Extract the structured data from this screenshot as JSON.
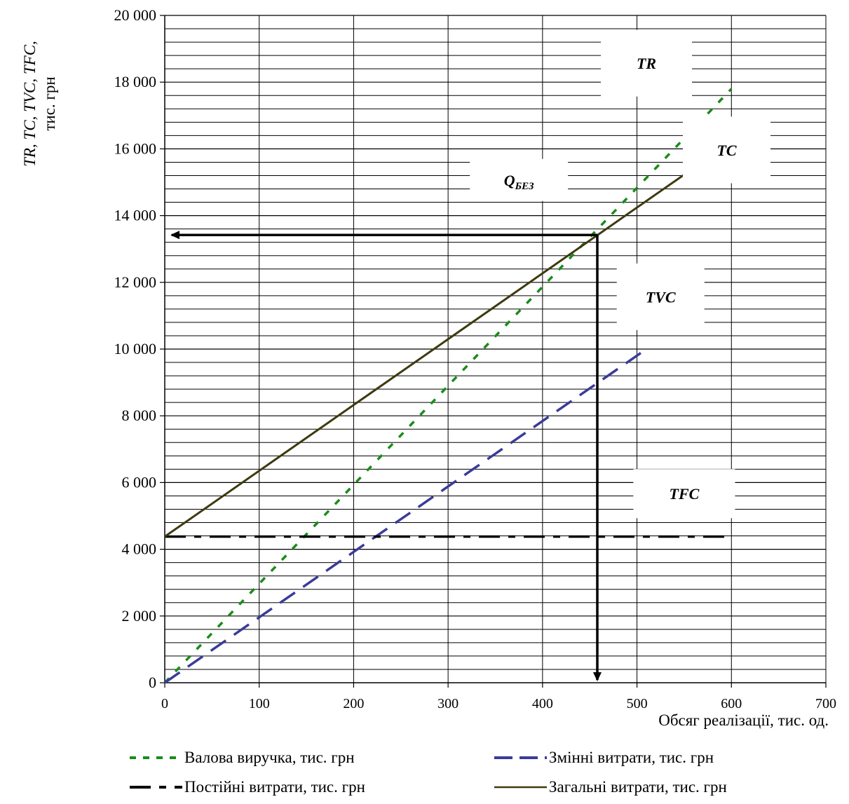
{
  "chart_data": {
    "type": "line",
    "xlabel": "Обсяг реалізації, тис. од.",
    "ylabel_line1": "TR, TC, TVC, TFC,",
    "ylabel_line2": "тис. грн",
    "xlim": [
      0,
      700
    ],
    "ylim": [
      0,
      20000
    ],
    "x_ticks": [
      0,
      100,
      200,
      300,
      400,
      500,
      600,
      700
    ],
    "x_tick_labels": [
      "0",
      "100",
      "200",
      "300",
      "400",
      "500",
      "600",
      "700"
    ],
    "y_ticks": [
      0,
      2000,
      4000,
      6000,
      8000,
      10000,
      12000,
      14000,
      16000,
      18000,
      20000
    ],
    "y_tick_labels": [
      "0",
      "2 000",
      "4 000",
      "6 000",
      "8 000",
      "10 000",
      "12 000",
      "14 000",
      "16 000",
      "18 000",
      "20 000"
    ],
    "grid": true,
    "legend_position": "bottom",
    "series": [
      {
        "name": "Валова виручка, тис. грн",
        "x": [
          0,
          600
        ],
        "y": [
          0,
          17800
        ],
        "color": "#1a8c1a",
        "style": "dotted"
      },
      {
        "name": "Змінні витрати, тис. грн",
        "x": [
          0,
          510
        ],
        "y": [
          0,
          10000
        ],
        "color": "#3b3b99",
        "style": "dashed"
      },
      {
        "name": "Постійні витрати, тис. грн",
        "x": [
          0,
          595
        ],
        "y": [
          4380,
          4380
        ],
        "color": "#000000",
        "style": "dashdot"
      },
      {
        "name": "Загальні витрати, тис. грн",
        "x": [
          0,
          580
        ],
        "y": [
          4380,
          15820
        ],
        "color": "#3d3a10",
        "style": "solid"
      }
    ],
    "break_even": {
      "x": 458,
      "y": 13420
    },
    "annotations": [
      {
        "text": "TR",
        "x": 510,
        "y": 18400,
        "plain": "TR"
      },
      {
        "text": "TC",
        "x": 595,
        "y": 15800,
        "plain": "TC"
      },
      {
        "text": "Q",
        "sub": "БЕЗ",
        "x": 375,
        "y": 14900
      },
      {
        "text": "TVC",
        "x": 525,
        "y": 11400
      },
      {
        "text": "TFC",
        "x": 550,
        "y": 5500
      }
    ]
  }
}
